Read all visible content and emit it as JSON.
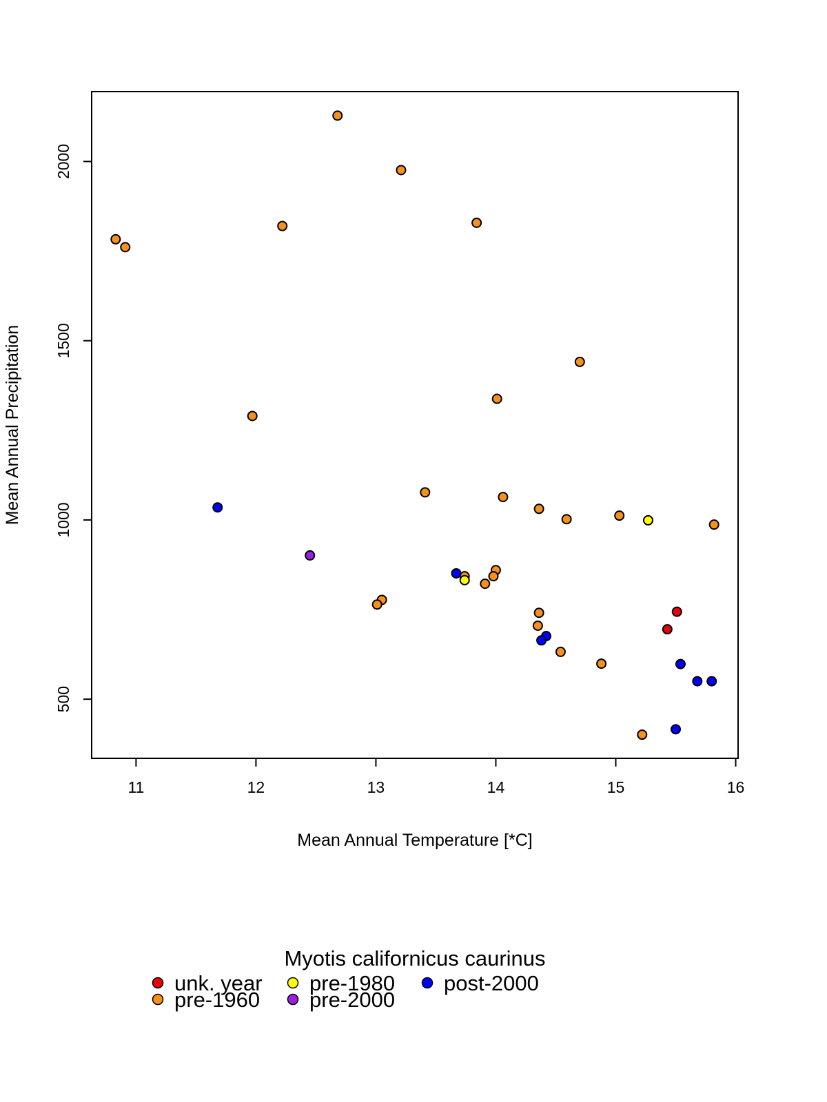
{
  "chart_data": {
    "type": "scatter",
    "xlabel": "Mean Annual Temperature [*C]",
    "ylabel": "Mean Annual Precipitation",
    "xlim": [
      10.63,
      16.02
    ],
    "ylim": [
      335,
      2195
    ],
    "x_ticks": [
      "11",
      "12",
      "13",
      "14",
      "15",
      "16"
    ],
    "y_ticks": [
      "500",
      "1000",
      "1500",
      "2000"
    ],
    "grid": false,
    "legend": {
      "title": "Myotis californicus caurinus",
      "placement": "bottom"
    },
    "series": [
      {
        "name": "unk. year",
        "color": "#e8000b",
        "points": [
          [
            15.43,
            695
          ],
          [
            15.51,
            744
          ]
        ]
      },
      {
        "name": "pre-1960",
        "color": "#f6911e",
        "points": [
          [
            10.83,
            1783
          ],
          [
            10.91,
            1761
          ],
          [
            12.22,
            1820
          ],
          [
            12.68,
            2128
          ],
          [
            13.21,
            1976
          ],
          [
            13.84,
            1829
          ],
          [
            11.97,
            1290
          ],
          [
            14.7,
            1441
          ],
          [
            14.01,
            1338
          ],
          [
            13.41,
            1077
          ],
          [
            14.06,
            1064
          ],
          [
            14.36,
            1031
          ],
          [
            14.59,
            1002
          ],
          [
            15.03,
            1012
          ],
          [
            15.82,
            987
          ],
          [
            14.0,
            860
          ],
          [
            13.98,
            843
          ],
          [
            13.74,
            843
          ],
          [
            13.91,
            822
          ],
          [
            13.05,
            777
          ],
          [
            13.01,
            764
          ],
          [
            14.36,
            741
          ],
          [
            14.35,
            705
          ],
          [
            14.54,
            632
          ],
          [
            14.88,
            599
          ],
          [
            15.22,
            401
          ]
        ]
      },
      {
        "name": "pre-1980",
        "color": "#ffff00",
        "points": [
          [
            15.27,
            999
          ],
          [
            13.74,
            832
          ]
        ]
      },
      {
        "name": "pre-2000",
        "color": "#9b1fe0",
        "points": [
          [
            12.45,
            901
          ]
        ]
      },
      {
        "name": "post-2000",
        "color": "#0000ff",
        "points": [
          [
            11.68,
            1035
          ],
          [
            13.67,
            851
          ],
          [
            14.42,
            676
          ],
          [
            14.38,
            664
          ],
          [
            15.54,
            598
          ],
          [
            15.68,
            550
          ],
          [
            15.8,
            550
          ],
          [
            15.5,
            416
          ]
        ]
      }
    ]
  }
}
